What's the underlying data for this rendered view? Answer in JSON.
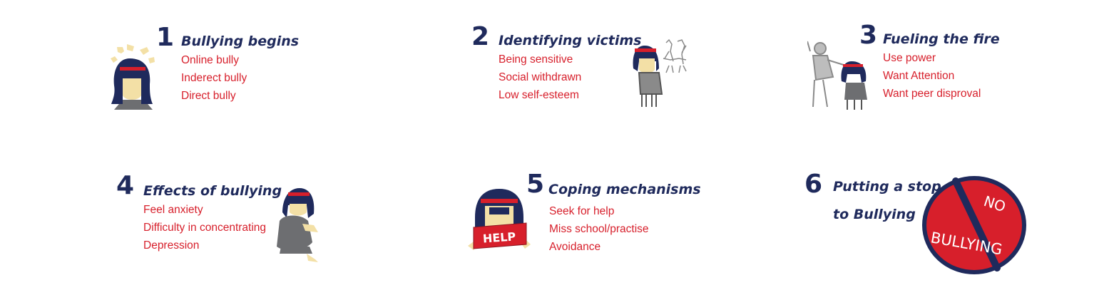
{
  "colors": {
    "navy": "#1f2a5c",
    "red": "#d71f2b",
    "skin": "#f3e0a6",
    "gray": "#6d6e71"
  },
  "steps": [
    {
      "number": "1",
      "title": "Bullying begins",
      "items": [
        "Online bully",
        "Inderect bully",
        "Direct bully"
      ],
      "icon": "girl-pointed-at-icon"
    },
    {
      "number": "2",
      "title": "Identifying victims",
      "items": [
        "Being sensitive",
        "Social withdrawn",
        "Low self-esteem"
      ],
      "icon": "girl-looking-down-icon"
    },
    {
      "number": "3",
      "title": "Fueling the fire",
      "items": [
        "Use power",
        "Want Attention",
        "Want peer disproval"
      ],
      "icon": "bully-pushing-girl-icon"
    },
    {
      "number": "4",
      "title": "Effects of bullying",
      "items": [
        "Feel anxiety",
        "Difficulty in concentrating",
        "Depression"
      ],
      "icon": "girl-crouching-icon"
    },
    {
      "number": "5",
      "title": "Coping mechanisms",
      "items": [
        "Seek for help",
        "Miss school/practise",
        "Avoidance"
      ],
      "icon": "girl-holding-help-sign-icon",
      "sign_text": "HELP"
    },
    {
      "number": "6",
      "title_lines": [
        "Putting a stop",
        "to Bullying"
      ],
      "icon": "no-bullying-sign-icon",
      "sign_words": [
        "NO",
        "BULLYING"
      ]
    }
  ]
}
